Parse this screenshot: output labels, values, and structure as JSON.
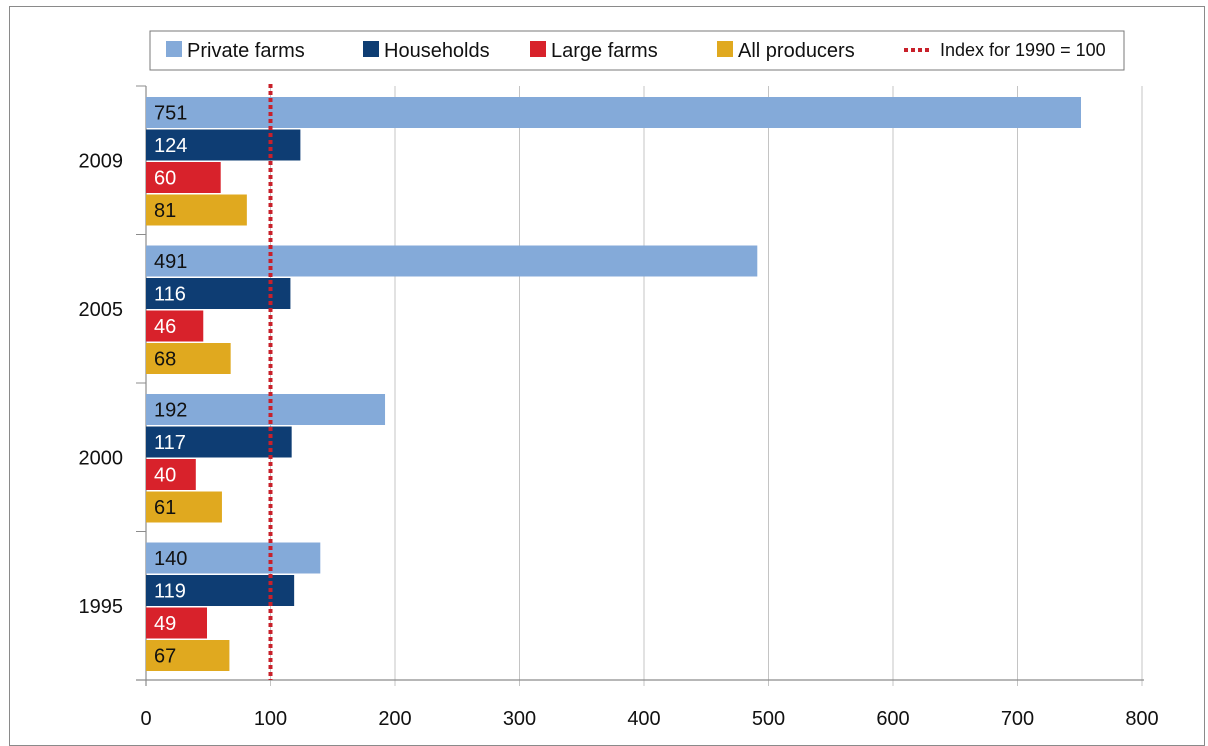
{
  "chart_data": {
    "type": "bar",
    "orientation": "horizontal",
    "title": "",
    "xlabel": "",
    "ylabel": "",
    "xlim": [
      0,
      800
    ],
    "x_ticks": [
      0,
      100,
      200,
      300,
      400,
      500,
      600,
      700,
      800
    ],
    "grid": true,
    "legend_placement": "top",
    "categories": [
      "2009",
      "2005",
      "2000",
      "1995"
    ],
    "series": [
      {
        "name": "Private farms",
        "color": "#84aad9",
        "label_color": "#111111",
        "values": [
          751,
          491,
          192,
          140
        ]
      },
      {
        "name": "Households",
        "color": "#0e3d73",
        "label_color": "#ffffff",
        "values": [
          124,
          116,
          117,
          119
        ]
      },
      {
        "name": "Large farms",
        "color": "#d8222b",
        "label_color": "#ffffff",
        "values": [
          60,
          46,
          40,
          49
        ]
      },
      {
        "name": "All producers",
        "color": "#e0a91f",
        "label_color": "#111111",
        "values": [
          81,
          68,
          61,
          67
        ]
      }
    ],
    "reference_line": {
      "name": "Index for 1990 = 100",
      "value": 100,
      "color": "#c8202a",
      "style": "dotted"
    }
  }
}
